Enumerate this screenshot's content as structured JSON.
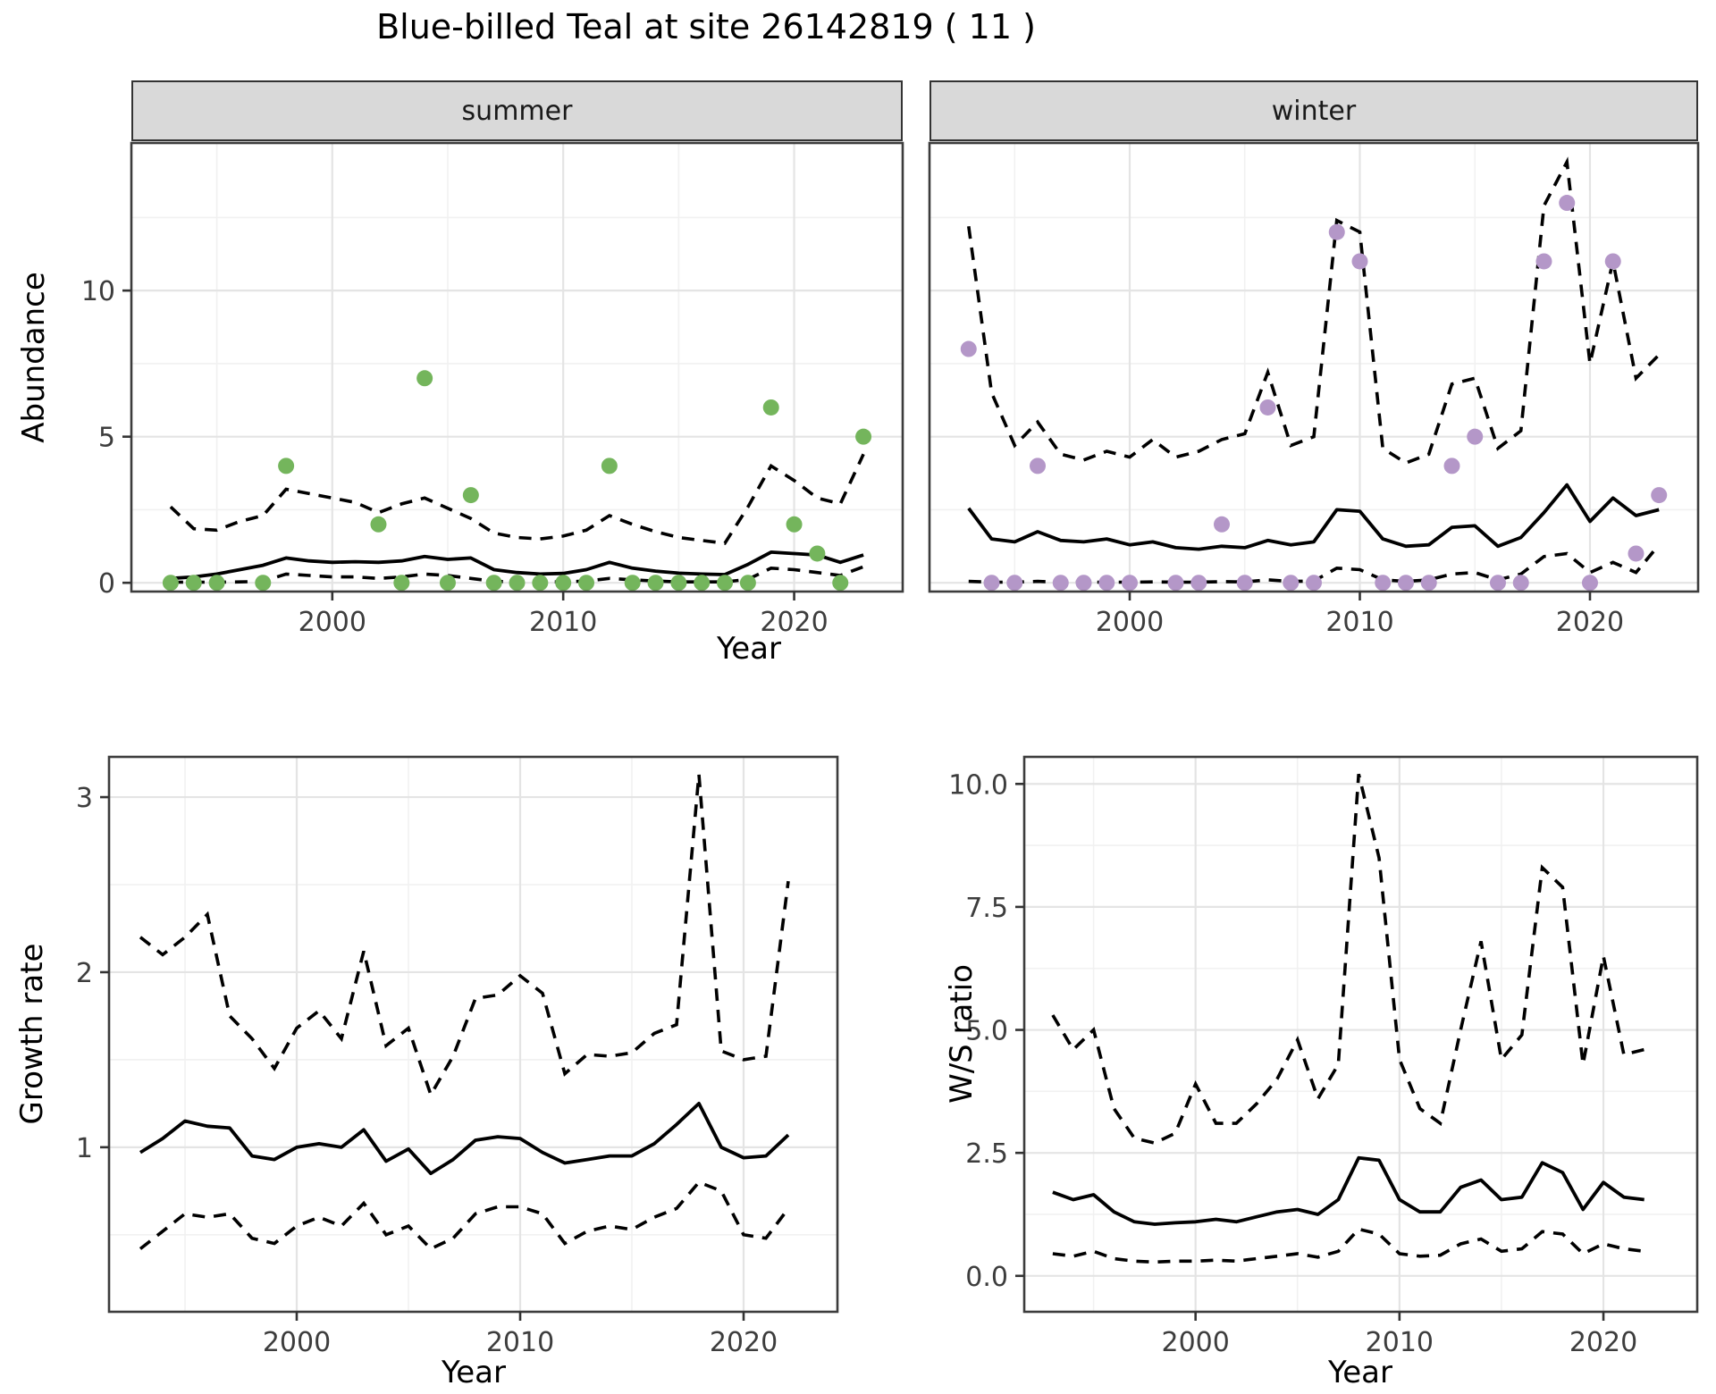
{
  "title": "Blue-billed Teal at site 26142819 ( 11 )",
  "shared_x_title": "Year",
  "colors": {
    "summer_point": "#74b55c",
    "winter_point": "#b497c8",
    "line": "#000000",
    "grid_major": "#e4e4e4",
    "grid_minor": "#f1f1f1",
    "panel_border": "#3c3c3c",
    "tick_label": "#3d3d3d",
    "strip_bg": "#d9d9d9"
  },
  "chart_data": [
    {
      "id": "abundance-summer",
      "type": "line",
      "facet": "summer",
      "ylabel": "Abundance",
      "xlabel": "Year",
      "xlim": [
        1991.3,
        2024.7
      ],
      "ylim": [
        -0.3,
        15.05
      ],
      "x_ticks": [
        2000,
        2010,
        2020
      ],
      "x_minor": [
        1995,
        2005,
        2015
      ],
      "y_ticks": [
        0,
        5,
        10
      ],
      "y_minor": [
        2.5,
        7.5,
        12.5
      ],
      "show_y_labels": true,
      "legend": "none",
      "grid": true,
      "points": {
        "years": [
          1993,
          1994,
          1995,
          1997,
          1998,
          2002,
          2003,
          2004,
          2005,
          2006,
          2007,
          2008,
          2009,
          2010,
          2011,
          2012,
          2013,
          2014,
          2015,
          2016,
          2017,
          2018,
          2019,
          2020,
          2021,
          2022,
          2023
        ],
        "values": [
          0,
          0,
          0,
          0,
          4,
          2,
          0,
          7,
          0,
          3,
          0,
          0,
          0,
          0,
          0,
          4,
          0,
          0,
          0,
          0,
          0,
          0,
          6,
          2,
          1,
          0,
          5
        ]
      },
      "line_years": [
        1993,
        1994,
        1995,
        1996,
        1997,
        1998,
        1999,
        2000,
        2001,
        2002,
        2003,
        2004,
        2005,
        2006,
        2007,
        2008,
        2009,
        2010,
        2011,
        2012,
        2013,
        2014,
        2015,
        2016,
        2017,
        2018,
        2019,
        2020,
        2021,
        2022,
        2023
      ],
      "mean": [
        0.15,
        0.2,
        0.3,
        0.45,
        0.6,
        0.85,
        0.75,
        0.7,
        0.72,
        0.7,
        0.75,
        0.9,
        0.8,
        0.85,
        0.45,
        0.35,
        0.3,
        0.32,
        0.45,
        0.7,
        0.5,
        0.4,
        0.33,
        0.3,
        0.28,
        0.63,
        1.05,
        1.0,
        0.95,
        0.7,
        0.95
      ],
      "upper": [
        2.6,
        1.85,
        1.8,
        2.1,
        2.3,
        3.2,
        3.05,
        2.9,
        2.75,
        2.4,
        2.7,
        2.9,
        2.55,
        2.2,
        1.7,
        1.55,
        1.5,
        1.6,
        1.8,
        2.3,
        2.0,
        1.75,
        1.55,
        1.45,
        1.35,
        2.6,
        4.0,
        3.5,
        2.9,
        2.7,
        4.4
      ],
      "lower": [
        0.02,
        0.02,
        0.02,
        0.03,
        0.05,
        0.3,
        0.25,
        0.2,
        0.2,
        0.15,
        0.2,
        0.3,
        0.25,
        0.15,
        0.05,
        0.03,
        0.03,
        0.03,
        0.06,
        0.15,
        0.1,
        0.06,
        0.03,
        0.03,
        0.03,
        0.12,
        0.5,
        0.45,
        0.35,
        0.25,
        0.55
      ],
      "point_color": "#74b55c"
    },
    {
      "id": "abundance-winter",
      "type": "line",
      "facet": "winter",
      "ylabel": "Abundance",
      "xlabel": "Year",
      "xlim": [
        1991.3,
        2024.7
      ],
      "ylim": [
        -0.3,
        15.05
      ],
      "x_ticks": [
        2000,
        2010,
        2020
      ],
      "x_minor": [
        1995,
        2005,
        2015
      ],
      "y_ticks": [
        0,
        5,
        10
      ],
      "y_minor": [
        2.5,
        7.5,
        12.5
      ],
      "show_y_labels": false,
      "legend": "none",
      "grid": true,
      "points": {
        "years": [
          1993,
          1994,
          1995,
          1996,
          1997,
          1998,
          1999,
          2000,
          2002,
          2003,
          2004,
          2005,
          2006,
          2007,
          2008,
          2009,
          2010,
          2011,
          2012,
          2013,
          2014,
          2015,
          2016,
          2017,
          2018,
          2019,
          2020,
          2021,
          2022,
          2023
        ],
        "values": [
          8,
          0,
          0,
          4,
          0,
          0,
          0,
          0,
          0,
          0,
          2,
          0,
          6,
          0,
          0,
          12,
          11,
          0,
          0,
          0,
          4,
          5,
          0,
          0,
          11,
          13,
          0,
          11,
          1,
          3
        ]
      },
      "line_years": [
        1993,
        1994,
        1995,
        1996,
        1997,
        1998,
        1999,
        2000,
        2001,
        2002,
        2003,
        2004,
        2005,
        2006,
        2007,
        2008,
        2009,
        2010,
        2011,
        2012,
        2013,
        2014,
        2015,
        2016,
        2017,
        2018,
        2019,
        2020,
        2021,
        2022,
        2023
      ],
      "mean": [
        2.55,
        1.5,
        1.4,
        1.75,
        1.45,
        1.4,
        1.5,
        1.3,
        1.4,
        1.2,
        1.15,
        1.25,
        1.2,
        1.45,
        1.3,
        1.4,
        2.5,
        2.45,
        1.5,
        1.25,
        1.3,
        1.9,
        1.95,
        1.25,
        1.55,
        2.4,
        3.35,
        2.1,
        2.9,
        2.3,
        2.5
      ],
      "upper": [
        12.2,
        6.5,
        4.7,
        5.5,
        4.4,
        4.2,
        4.5,
        4.3,
        4.9,
        4.3,
        4.5,
        4.9,
        5.1,
        7.2,
        4.7,
        5.0,
        12.4,
        12.0,
        4.6,
        4.1,
        4.4,
        6.8,
        7.0,
        4.6,
        5.2,
        12.9,
        14.4,
        7.5,
        11.0,
        7.0,
        7.8
      ],
      "lower": [
        0.05,
        0.02,
        0.02,
        0.05,
        0.02,
        0.02,
        0.02,
        0.02,
        0.03,
        0.02,
        0.02,
        0.04,
        0.03,
        0.1,
        0.05,
        0.06,
        0.5,
        0.45,
        0.1,
        0.05,
        0.1,
        0.3,
        0.35,
        0.1,
        0.3,
        0.9,
        1.0,
        0.35,
        0.7,
        0.35,
        1.3
      ],
      "point_color": "#b497c8"
    },
    {
      "id": "growth-rate",
      "type": "line",
      "facet": "",
      "ylabel": "Growth rate",
      "xlabel": "Year",
      "xlim": [
        1991.6,
        2024.2
      ],
      "ylim": [
        0.06,
        3.23
      ],
      "x_ticks": [
        2000,
        2010,
        2020
      ],
      "x_minor": [
        1995,
        2005,
        2015
      ],
      "y_ticks": [
        1,
        2,
        3
      ],
      "y_minor": [
        0.5,
        1.5,
        2.5
      ],
      "show_y_labels": true,
      "legend": "none",
      "grid": true,
      "points": {
        "years": [],
        "values": []
      },
      "line_years": [
        1993,
        1994,
        1995,
        1996,
        1997,
        1998,
        1999,
        2000,
        2001,
        2002,
        2003,
        2004,
        2005,
        2006,
        2007,
        2008,
        2009,
        2010,
        2011,
        2012,
        2013,
        2014,
        2015,
        2016,
        2017,
        2018,
        2019,
        2020,
        2021,
        2022
      ],
      "mean": [
        0.97,
        1.05,
        1.15,
        1.12,
        1.11,
        0.95,
        0.93,
        1.0,
        1.02,
        1.0,
        1.1,
        0.92,
        0.99,
        0.85,
        0.93,
        1.04,
        1.06,
        1.05,
        0.97,
        0.91,
        0.93,
        0.95,
        0.95,
        1.02,
        1.13,
        1.25,
        1.0,
        0.94,
        0.95,
        1.07
      ],
      "upper": [
        2.2,
        2.1,
        2.2,
        2.33,
        1.75,
        1.62,
        1.45,
        1.68,
        1.78,
        1.62,
        2.12,
        1.58,
        1.68,
        1.3,
        1.52,
        1.85,
        1.87,
        1.98,
        1.88,
        1.42,
        1.53,
        1.52,
        1.54,
        1.65,
        1.7,
        3.13,
        1.55,
        1.5,
        1.52,
        2.52
      ],
      "lower": [
        0.42,
        0.52,
        0.62,
        0.6,
        0.62,
        0.48,
        0.45,
        0.55,
        0.6,
        0.55,
        0.68,
        0.5,
        0.55,
        0.42,
        0.48,
        0.62,
        0.66,
        0.66,
        0.62,
        0.45,
        0.52,
        0.55,
        0.53,
        0.6,
        0.65,
        0.8,
        0.75,
        0.5,
        0.48,
        0.65
      ],
      "point_color": "none"
    },
    {
      "id": "ws-ratio",
      "type": "line",
      "facet": "",
      "ylabel": "W/S ratio",
      "xlabel": "Year",
      "xlim": [
        1991.6,
        2024.6
      ],
      "ylim": [
        -0.73,
        10.55
      ],
      "x_ticks": [
        2000,
        2010,
        2020
      ],
      "x_minor": [
        1995,
        2005,
        2015
      ],
      "y_ticks": [
        0.0,
        2.5,
        5.0,
        7.5,
        10.0
      ],
      "y_tick_labels": [
        "0.0",
        "2.5",
        "5.0",
        "7.5",
        "10.0"
      ],
      "y_minor": [
        1.25,
        3.75,
        6.25,
        8.75
      ],
      "show_y_labels": true,
      "legend": "none",
      "grid": true,
      "points": {
        "years": [],
        "values": []
      },
      "line_years": [
        1993,
        1994,
        1995,
        1996,
        1997,
        1998,
        1999,
        2000,
        2001,
        2002,
        2003,
        2004,
        2005,
        2006,
        2007,
        2008,
        2009,
        2010,
        2011,
        2012,
        2013,
        2014,
        2015,
        2016,
        2017,
        2018,
        2019,
        2020,
        2021,
        2022
      ],
      "mean": [
        1.7,
        1.55,
        1.65,
        1.3,
        1.1,
        1.05,
        1.08,
        1.1,
        1.15,
        1.1,
        1.2,
        1.3,
        1.35,
        1.25,
        1.55,
        2.4,
        2.35,
        1.55,
        1.3,
        1.3,
        1.8,
        1.95,
        1.55,
        1.6,
        2.3,
        2.1,
        1.35,
        1.9,
        1.6,
        1.55
      ],
      "upper": [
        5.3,
        4.6,
        5.0,
        3.4,
        2.8,
        2.7,
        2.9,
        3.9,
        3.1,
        3.1,
        3.5,
        4.0,
        4.8,
        3.6,
        4.3,
        10.2,
        8.5,
        4.4,
        3.4,
        3.1,
        5.0,
        6.8,
        4.4,
        4.9,
        8.3,
        7.9,
        4.3,
        6.5,
        4.5,
        4.6
      ],
      "lower": [
        0.45,
        0.4,
        0.5,
        0.35,
        0.3,
        0.28,
        0.3,
        0.3,
        0.32,
        0.3,
        0.35,
        0.4,
        0.45,
        0.38,
        0.5,
        0.95,
        0.85,
        0.45,
        0.4,
        0.42,
        0.65,
        0.75,
        0.5,
        0.55,
        0.9,
        0.85,
        0.45,
        0.65,
        0.55,
        0.5
      ]
    }
  ]
}
